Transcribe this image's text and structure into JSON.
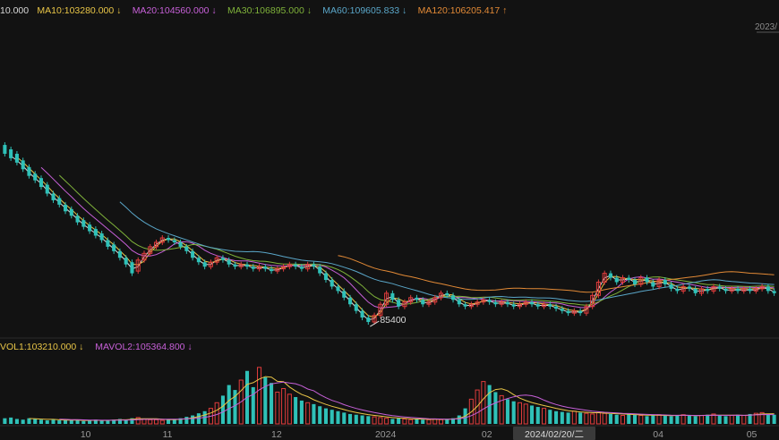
{
  "header": {
    "items": [
      {
        "text": "10.000",
        "arrow": "",
        "color": "#d9d9d9"
      },
      {
        "text": "MA10:103280.000",
        "arrow": "↓",
        "color": "#e8c547"
      },
      {
        "text": "MA20:104560.000",
        "arrow": "↓",
        "color": "#c760d8"
      },
      {
        "text": "MA30:106895.000",
        "arrow": "↓",
        "color": "#7fb23a"
      },
      {
        "text": "MA60:109605.833",
        "arrow": "↓",
        "color": "#5aa6c8"
      },
      {
        "text": "MA120:106205.417",
        "arrow": "↑",
        "color": "#e38a36"
      }
    ]
  },
  "corner_date": "2023/",
  "volume_header": {
    "items": [
      {
        "text": "VOL1:103210.000",
        "arrow": "↓",
        "color": "#e8c547"
      },
      {
        "text": "MAVOL2:105364.800",
        "arrow": "↓",
        "color": "#c760d8"
      }
    ]
  },
  "x_ticks": [
    "10",
    "11",
    "12",
    "2024",
    "02",
    "04",
    "05"
  ],
  "crosshair_label": "2024/02/20/二",
  "min_marker": "85400",
  "colors": {
    "background": "#121212",
    "up": "#e03c3c",
    "down": "#2fc1b8",
    "ma5": "#d9d9d9",
    "ma10": "#e8c547",
    "ma20": "#c760d8",
    "ma30": "#7fb23a",
    "ma60": "#5aa6c8",
    "ma120": "#e38a36"
  },
  "chart_data": {
    "type": "candlestick",
    "candles": [
      {
        "o": 0.82,
        "c": 0.78
      },
      {
        "o": 0.8,
        "c": 0.76
      },
      {
        "o": 0.78,
        "c": 0.74
      },
      {
        "o": 0.75,
        "c": 0.71
      },
      {
        "o": 0.72,
        "c": 0.68
      },
      {
        "o": 0.69,
        "c": 0.66
      },
      {
        "o": 0.67,
        "c": 0.63
      },
      {
        "o": 0.64,
        "c": 0.6
      },
      {
        "o": 0.6,
        "c": 0.57
      },
      {
        "o": 0.58,
        "c": 0.55
      },
      {
        "o": 0.55,
        "c": 0.52
      },
      {
        "o": 0.53,
        "c": 0.5
      },
      {
        "o": 0.5,
        "c": 0.47
      },
      {
        "o": 0.48,
        "c": 0.45
      },
      {
        "o": 0.46,
        "c": 0.43
      },
      {
        "o": 0.44,
        "c": 0.41
      },
      {
        "o": 0.42,
        "c": 0.39
      },
      {
        "o": 0.39,
        "c": 0.36
      },
      {
        "o": 0.37,
        "c": 0.34
      },
      {
        "o": 0.34,
        "c": 0.31
      },
      {
        "o": 0.31,
        "c": 0.28
      },
      {
        "o": 0.29,
        "c": 0.24
      },
      {
        "o": 0.25,
        "c": 0.3
      },
      {
        "o": 0.3,
        "c": 0.33
      },
      {
        "o": 0.33,
        "c": 0.36
      },
      {
        "o": 0.36,
        "c": 0.38
      },
      {
        "o": 0.38,
        "c": 0.4
      },
      {
        "o": 0.4,
        "c": 0.39
      },
      {
        "o": 0.39,
        "c": 0.38
      },
      {
        "o": 0.38,
        "c": 0.36
      },
      {
        "o": 0.36,
        "c": 0.34
      },
      {
        "o": 0.34,
        "c": 0.31
      },
      {
        "o": 0.31,
        "c": 0.29
      },
      {
        "o": 0.29,
        "c": 0.27
      },
      {
        "o": 0.27,
        "c": 0.29
      },
      {
        "o": 0.29,
        "c": 0.31
      },
      {
        "o": 0.31,
        "c": 0.3
      },
      {
        "o": 0.3,
        "c": 0.28
      },
      {
        "o": 0.28,
        "c": 0.27
      },
      {
        "o": 0.27,
        "c": 0.28
      },
      {
        "o": 0.28,
        "c": 0.27
      },
      {
        "o": 0.27,
        "c": 0.26
      },
      {
        "o": 0.26,
        "c": 0.27
      },
      {
        "o": 0.27,
        "c": 0.26
      },
      {
        "o": 0.26,
        "c": 0.25
      },
      {
        "o": 0.25,
        "c": 0.26
      },
      {
        "o": 0.26,
        "c": 0.27
      },
      {
        "o": 0.27,
        "c": 0.28
      },
      {
        "o": 0.28,
        "c": 0.27
      },
      {
        "o": 0.27,
        "c": 0.26
      },
      {
        "o": 0.26,
        "c": 0.28
      },
      {
        "o": 0.28,
        "c": 0.27
      },
      {
        "o": 0.27,
        "c": 0.24
      },
      {
        "o": 0.24,
        "c": 0.21
      },
      {
        "o": 0.21,
        "c": 0.18
      },
      {
        "o": 0.18,
        "c": 0.16
      },
      {
        "o": 0.16,
        "c": 0.13
      },
      {
        "o": 0.13,
        "c": 0.1
      },
      {
        "o": 0.1,
        "c": 0.07
      },
      {
        "o": 0.07,
        "c": 0.04
      },
      {
        "o": 0.04,
        "c": 0.02
      },
      {
        "o": 0.02,
        "c": 0.05
      },
      {
        "o": 0.05,
        "c": 0.1
      },
      {
        "o": 0.1,
        "c": 0.15
      },
      {
        "o": 0.15,
        "c": 0.12
      },
      {
        "o": 0.12,
        "c": 0.09
      },
      {
        "o": 0.09,
        "c": 0.11
      },
      {
        "o": 0.11,
        "c": 0.13
      },
      {
        "o": 0.13,
        "c": 0.12
      },
      {
        "o": 0.12,
        "c": 0.1
      },
      {
        "o": 0.1,
        "c": 0.11
      },
      {
        "o": 0.11,
        "c": 0.13
      },
      {
        "o": 0.13,
        "c": 0.15
      },
      {
        "o": 0.15,
        "c": 0.14
      },
      {
        "o": 0.14,
        "c": 0.12
      },
      {
        "o": 0.12,
        "c": 0.1
      },
      {
        "o": 0.1,
        "c": 0.09
      },
      {
        "o": 0.09,
        "c": 0.1
      },
      {
        "o": 0.1,
        "c": 0.11
      },
      {
        "o": 0.11,
        "c": 0.12
      },
      {
        "o": 0.12,
        "c": 0.11
      },
      {
        "o": 0.11,
        "c": 0.1
      },
      {
        "o": 0.1,
        "c": 0.11
      },
      {
        "o": 0.11,
        "c": 0.1
      },
      {
        "o": 0.1,
        "c": 0.09
      },
      {
        "o": 0.09,
        "c": 0.1
      },
      {
        "o": 0.1,
        "c": 0.11
      },
      {
        "o": 0.11,
        "c": 0.1
      },
      {
        "o": 0.1,
        "c": 0.09
      },
      {
        "o": 0.09,
        "c": 0.1
      },
      {
        "o": 0.1,
        "c": 0.09
      },
      {
        "o": 0.09,
        "c": 0.08
      },
      {
        "o": 0.08,
        "c": 0.07
      },
      {
        "o": 0.07,
        "c": 0.06
      },
      {
        "o": 0.06,
        "c": 0.07
      },
      {
        "o": 0.07,
        "c": 0.06
      },
      {
        "o": 0.06,
        "c": 0.09
      },
      {
        "o": 0.09,
        "c": 0.14
      },
      {
        "o": 0.14,
        "c": 0.2
      },
      {
        "o": 0.2,
        "c": 0.24
      },
      {
        "o": 0.24,
        "c": 0.22
      },
      {
        "o": 0.22,
        "c": 0.2
      },
      {
        "o": 0.2,
        "c": 0.22
      },
      {
        "o": 0.22,
        "c": 0.21
      },
      {
        "o": 0.21,
        "c": 0.19
      },
      {
        "o": 0.19,
        "c": 0.22
      },
      {
        "o": 0.22,
        "c": 0.2
      },
      {
        "o": 0.2,
        "c": 0.18
      },
      {
        "o": 0.18,
        "c": 0.21
      },
      {
        "o": 0.21,
        "c": 0.19
      },
      {
        "o": 0.19,
        "c": 0.17
      },
      {
        "o": 0.17,
        "c": 0.16
      },
      {
        "o": 0.16,
        "c": 0.18
      },
      {
        "o": 0.18,
        "c": 0.17
      },
      {
        "o": 0.17,
        "c": 0.15
      },
      {
        "o": 0.15,
        "c": 0.17
      },
      {
        "o": 0.17,
        "c": 0.16
      },
      {
        "o": 0.16,
        "c": 0.18
      },
      {
        "o": 0.18,
        "c": 0.17
      },
      {
        "o": 0.17,
        "c": 0.16
      },
      {
        "o": 0.16,
        "c": 0.17
      },
      {
        "o": 0.17,
        "c": 0.16
      },
      {
        "o": 0.16,
        "c": 0.17
      },
      {
        "o": 0.17,
        "c": 0.16
      },
      {
        "o": 0.16,
        "c": 0.17
      },
      {
        "o": 0.17,
        "c": 0.18
      },
      {
        "o": 0.18,
        "c": 0.16
      },
      {
        "o": 0.16,
        "c": 0.15
      }
    ],
    "volumes": [
      0.08,
      0.09,
      0.07,
      0.06,
      0.08,
      0.07,
      0.06,
      0.05,
      0.06,
      0.05,
      0.05,
      0.06,
      0.05,
      0.04,
      0.05,
      0.06,
      0.05,
      0.05,
      0.06,
      0.07,
      0.06,
      0.08,
      0.09,
      0.07,
      0.06,
      0.06,
      0.05,
      0.06,
      0.07,
      0.08,
      0.1,
      0.12,
      0.15,
      0.18,
      0.22,
      0.3,
      0.4,
      0.55,
      0.48,
      0.62,
      0.75,
      0.52,
      0.8,
      0.66,
      0.58,
      0.45,
      0.5,
      0.42,
      0.38,
      0.33,
      0.3,
      0.28,
      0.25,
      0.22,
      0.2,
      0.18,
      0.16,
      0.14,
      0.13,
      0.12,
      0.11,
      0.1,
      0.09,
      0.08,
      0.07,
      0.08,
      0.07,
      0.06,
      0.07,
      0.06,
      0.06,
      0.07,
      0.06,
      0.07,
      0.08,
      0.12,
      0.22,
      0.35,
      0.48,
      0.6,
      0.55,
      0.45,
      0.4,
      0.35,
      0.32,
      0.3,
      0.28,
      0.26,
      0.24,
      0.22,
      0.2,
      0.18,
      0.17,
      0.16,
      0.18,
      0.16,
      0.15,
      0.14,
      0.16,
      0.15,
      0.14,
      0.13,
      0.12,
      0.14,
      0.13,
      0.12,
      0.11,
      0.12,
      0.13,
      0.12,
      0.11,
      0.12,
      0.13,
      0.12,
      0.11,
      0.12,
      0.13,
      0.14,
      0.12,
      0.11,
      0.12,
      0.13,
      0.12,
      0.14,
      0.15,
      0.16,
      0.14,
      0.13
    ],
    "ma_lines": [
      {
        "name": "MA5",
        "color": "#d9d9d9"
      },
      {
        "name": "MA10",
        "color": "#e8c547"
      },
      {
        "name": "MA20",
        "color": "#c760d8"
      },
      {
        "name": "MA30",
        "color": "#7fb23a"
      },
      {
        "name": "MA60",
        "color": "#5aa6c8"
      },
      {
        "name": "MA120",
        "color": "#e38a36"
      }
    ],
    "x_tick_labels": [
      "10",
      "11",
      "12",
      "2024",
      "02",
      "04",
      "05"
    ],
    "min_label": "85400",
    "grid": false
  }
}
